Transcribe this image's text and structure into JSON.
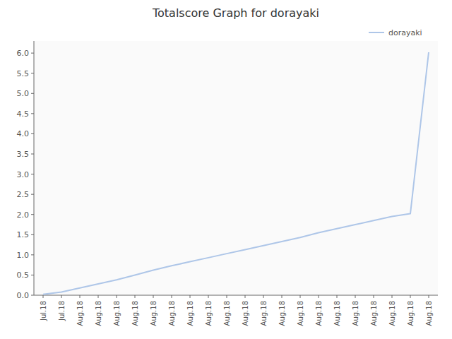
{
  "chart_data": {
    "type": "line",
    "title": "Totalscore Graph for dorayaki",
    "categories": [
      "Jul.18",
      "Jul.18",
      "Aug.18",
      "Aug.18",
      "Aug.18",
      "Aug.18",
      "Aug.18",
      "Aug.18",
      "Aug.18",
      "Aug.18",
      "Aug.18",
      "Aug.18",
      "Aug.18",
      "Aug.18",
      "Aug.18",
      "Aug.18",
      "Aug.18",
      "Aug.18",
      "Aug.18",
      "Aug.18",
      "Aug.18",
      "Aug.18"
    ],
    "series": [
      {
        "name": "dorayaki",
        "color": "#aec6e8",
        "values": [
          0.02,
          0.08,
          0.18,
          0.28,
          0.38,
          0.5,
          0.62,
          0.73,
          0.83,
          0.93,
          1.03,
          1.13,
          1.23,
          1.33,
          1.43,
          1.55,
          1.65,
          1.75,
          1.85,
          1.95,
          2.02,
          6.02
        ]
      }
    ],
    "ylim": [
      0.0,
      6.3
    ],
    "yticks": [
      {
        "value": 0.0,
        "label": "0.0"
      },
      0.5,
      {
        "value": 1.0,
        "label": "1.0"
      },
      1.5,
      {
        "value": 2.0,
        "label": "2.0"
      },
      2.5,
      {
        "value": 3.0,
        "label": "3.0"
      },
      3.5,
      {
        "value": 4.0,
        "label": "4.0"
      },
      4.5,
      {
        "value": 5.0,
        "label": "5.0"
      },
      5.5,
      {
        "value": 6.0,
        "label": "6.0"
      }
    ],
    "grid": false,
    "legend": "upper right"
  }
}
